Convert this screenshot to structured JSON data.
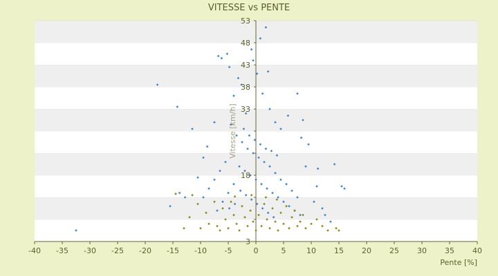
{
  "chart_data": {
    "type": "scatter",
    "title": "VITESSE vs PENTE",
    "xlabel": "Pente [%]",
    "ylabel": "Vitesse [km/h]",
    "xlim": [
      -40,
      40
    ],
    "ylim": [
      3,
      53
    ],
    "x_ticks": [
      -40,
      -35,
      -30,
      -25,
      -20,
      -15,
      -10,
      -5,
      0,
      5,
      10,
      15,
      20,
      25,
      30,
      35,
      40
    ],
    "y_ticks": [
      3,
      8,
      13,
      18,
      23,
      28,
      33,
      38,
      43,
      48,
      53
    ],
    "y_tick_labels_shown": [
      "3",
      "",
      "",
      "18",
      "",
      "",
      "33",
      "38",
      "43",
      "48",
      "53"
    ],
    "grid": "horizontal alternating bands",
    "legend": "none",
    "series": [
      {
        "color": "#3a86c8",
        "marker": "diamond",
        "points": [
          [
            -32.5,
            5.5
          ],
          [
            -17.8,
            38.5
          ],
          [
            -15.5,
            11.0
          ],
          [
            -14.2,
            33.5
          ],
          [
            -13.8,
            14.0
          ],
          [
            -12.8,
            13.0
          ],
          [
            -11.5,
            28.5
          ],
          [
            -10.5,
            17.5
          ],
          [
            -9.5,
            22.0
          ],
          [
            -8.8,
            24.5
          ],
          [
            -7.5,
            30.0
          ],
          [
            -6.8,
            45.0
          ],
          [
            -6.2,
            44.5
          ],
          [
            -5.2,
            45.5
          ],
          [
            -4.8,
            42.5
          ],
          [
            -4.5,
            29.5
          ],
          [
            -4.0,
            36.0
          ],
          [
            -3.2,
            40.0
          ],
          [
            -2.6,
            38.5
          ],
          [
            -1.8,
            32.0
          ],
          [
            -0.8,
            46.5
          ],
          [
            -0.5,
            44.0
          ],
          [
            0.2,
            41.0
          ],
          [
            0.8,
            49.0
          ],
          [
            1.8,
            51.5
          ],
          [
            2.2,
            41.5
          ],
          [
            1.2,
            36.5
          ],
          [
            2.5,
            33.0
          ],
          [
            3.5,
            30.0
          ],
          [
            4.5,
            28.5
          ],
          [
            5.8,
            31.5
          ],
          [
            7.5,
            36.5
          ],
          [
            8.5,
            30.5
          ],
          [
            8.2,
            26.5
          ],
          [
            9.5,
            25.0
          ],
          [
            11.2,
            19.5
          ],
          [
            14.2,
            20.5
          ],
          [
            15.5,
            15.5
          ],
          [
            16.0,
            15.0
          ],
          [
            11.0,
            15.5
          ],
          [
            12.5,
            9.0
          ],
          [
            13.5,
            7.5
          ],
          [
            -3.5,
            27.0
          ],
          [
            -2.5,
            25.5
          ],
          [
            -1.5,
            24.0
          ],
          [
            -0.5,
            23.0
          ],
          [
            0.5,
            22.0
          ],
          [
            1.5,
            21.0
          ],
          [
            2.5,
            20.0
          ],
          [
            3.5,
            18.5
          ],
          [
            4.5,
            17.0
          ],
          [
            5.5,
            16.0
          ],
          [
            6.5,
            14.5
          ],
          [
            7.5,
            13.0
          ],
          [
            -5.5,
            21.0
          ],
          [
            -6.5,
            19.0
          ],
          [
            -7.5,
            17.0
          ],
          [
            -8.5,
            15.0
          ],
          [
            -9.5,
            13.0
          ],
          [
            -3.0,
            20.0
          ],
          [
            -2.0,
            19.0
          ],
          [
            -1.0,
            18.0
          ],
          [
            0.0,
            17.0
          ],
          [
            1.0,
            16.0
          ],
          [
            2.0,
            15.0
          ],
          [
            3.0,
            14.0
          ],
          [
            4.0,
            13.0
          ],
          [
            5.0,
            12.0
          ],
          [
            6.0,
            11.0
          ],
          [
            7.0,
            10.0
          ],
          [
            8.0,
            9.0
          ],
          [
            -4.0,
            16.0
          ],
          [
            -5.0,
            14.0
          ],
          [
            -6.0,
            12.0
          ],
          [
            -7.0,
            10.0
          ],
          [
            -2.2,
            28.5
          ],
          [
            -1.2,
            27.0
          ],
          [
            -0.2,
            26.0
          ],
          [
            0.8,
            25.0
          ],
          [
            1.8,
            24.0
          ],
          [
            2.8,
            23.5
          ],
          [
            3.8,
            22.5
          ],
          [
            -2.8,
            14.5
          ],
          [
            -1.8,
            13.5
          ],
          [
            -0.8,
            12.5
          ],
          [
            0.2,
            11.5
          ],
          [
            1.2,
            10.5
          ],
          [
            2.2,
            9.5
          ],
          [
            3.2,
            8.5
          ],
          [
            -3.8,
            11.5
          ],
          [
            -4.8,
            10.5
          ],
          [
            9.0,
            20.0
          ],
          [
            10.5,
            12.0
          ],
          [
            12.0,
            10.5
          ]
        ]
      },
      {
        "color": "#8a8a10",
        "marker": "diamond",
        "points": [
          [
            -14.5,
            13.8
          ],
          [
            -13.0,
            6.0
          ],
          [
            -11.5,
            13.5
          ],
          [
            -10.5,
            11.5
          ],
          [
            -9.0,
            9.5
          ],
          [
            -8.5,
            7.0
          ],
          [
            -7.5,
            12.0
          ],
          [
            -7.0,
            6.5
          ],
          [
            -6.0,
            10.5
          ],
          [
            -5.5,
            8.0
          ],
          [
            -5.0,
            6.0
          ],
          [
            -4.5,
            12.0
          ],
          [
            -4.0,
            9.0
          ],
          [
            -3.5,
            7.0
          ],
          [
            -3.0,
            5.5
          ],
          [
            -2.5,
            11.0
          ],
          [
            -2.0,
            8.5
          ],
          [
            -1.5,
            6.5
          ],
          [
            -1.0,
            10.0
          ],
          [
            -0.5,
            7.5
          ],
          [
            0.0,
            5.5
          ],
          [
            0.5,
            9.0
          ],
          [
            1.0,
            6.5
          ],
          [
            1.5,
            11.5
          ],
          [
            2.0,
            8.0
          ],
          [
            2.5,
            6.0
          ],
          [
            3.0,
            10.5
          ],
          [
            3.5,
            7.5
          ],
          [
            4.0,
            5.5
          ],
          [
            4.5,
            9.5
          ],
          [
            5.0,
            7.0
          ],
          [
            5.5,
            11.0
          ],
          [
            6.0,
            6.0
          ],
          [
            6.5,
            8.5
          ],
          [
            7.0,
            10.0
          ],
          [
            7.5,
            6.5
          ],
          [
            8.0,
            7.5
          ],
          [
            8.5,
            9.0
          ],
          [
            9.0,
            6.0
          ],
          [
            10.0,
            7.0
          ],
          [
            11.0,
            8.0
          ],
          [
            12.0,
            6.5
          ],
          [
            13.0,
            5.5
          ],
          [
            14.5,
            6.0
          ],
          [
            15.0,
            5.5
          ],
          [
            -12.0,
            8.5
          ],
          [
            -10.0,
            6.0
          ],
          [
            -6.5,
            5.5
          ],
          [
            3.8,
            12.5
          ],
          [
            1.8,
            13.0
          ],
          [
            -0.8,
            13.5
          ],
          [
            -3.8,
            13.2
          ]
        ]
      }
    ]
  }
}
